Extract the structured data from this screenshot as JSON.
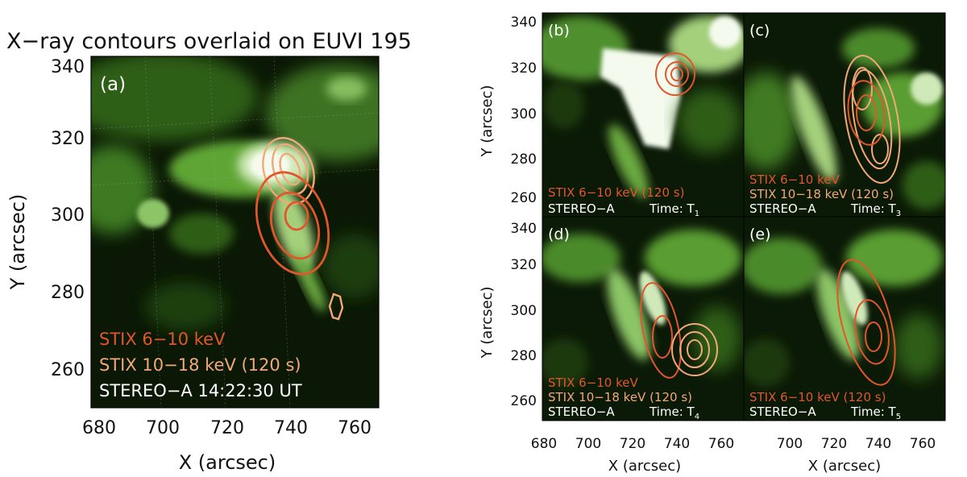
{
  "title": "X−ray contours overlaid on EUVI 195",
  "colors": {
    "stix_6_10": "#e2562b",
    "stix_10_18": "#f2a878",
    "stereo_text": "#ffffff",
    "euv_bright": "#f4fbee",
    "euv_mid": "#7bc14a",
    "euv_dark": "#0b1a06"
  },
  "panel_a": {
    "label": "(a)",
    "legend": [
      "STIX 6−10 keV",
      "STIX 10−18 keV (120 s)",
      "STEREO−A 14:22:30 UT"
    ],
    "x_ticks": [
      "680",
      "700",
      "720",
      "740",
      "760"
    ],
    "y_ticks": [
      "340",
      "320",
      "300",
      "280",
      "260"
    ],
    "x_label": "X (arcsec)",
    "y_label": "Y (arcsec)"
  },
  "panels_small": [
    {
      "label": "(b)",
      "legend_6_10": "STIX 6−10 keV (120 s)",
      "legend_10_18": "",
      "stereo": "STEREO−A",
      "time_prefix": "Time: T",
      "time_sub": "1"
    },
    {
      "label": "(c)",
      "legend_6_10": "STIX 6−10 keV",
      "legend_10_18": "STIX 10−18 keV (120 s)",
      "stereo": "STEREO−A",
      "time_prefix": "Time: T",
      "time_sub": "3"
    },
    {
      "label": "(d)",
      "legend_6_10": "STIX 6−10 keV",
      "legend_10_18": "STIX 10−18 keV (120 s)",
      "stereo": "STEREO−A",
      "time_prefix": "Time: T",
      "time_sub": "4"
    },
    {
      "label": "(e)",
      "legend_6_10": "STIX 6−10 keV (120 s)",
      "legend_10_18": "",
      "stereo": "STEREO−A",
      "time_prefix": "Time: T",
      "time_sub": "5"
    }
  ],
  "small_axes": {
    "y_ticks": [
      "340",
      "320",
      "300",
      "280",
      "260"
    ],
    "x_ticks_left": [
      "680",
      "700",
      "720",
      "740",
      "760"
    ],
    "x_ticks_right": [
      "700",
      "720",
      "740",
      "760"
    ],
    "x_label": "X (arcsec)",
    "y_label": "Y (arcsec)"
  }
}
